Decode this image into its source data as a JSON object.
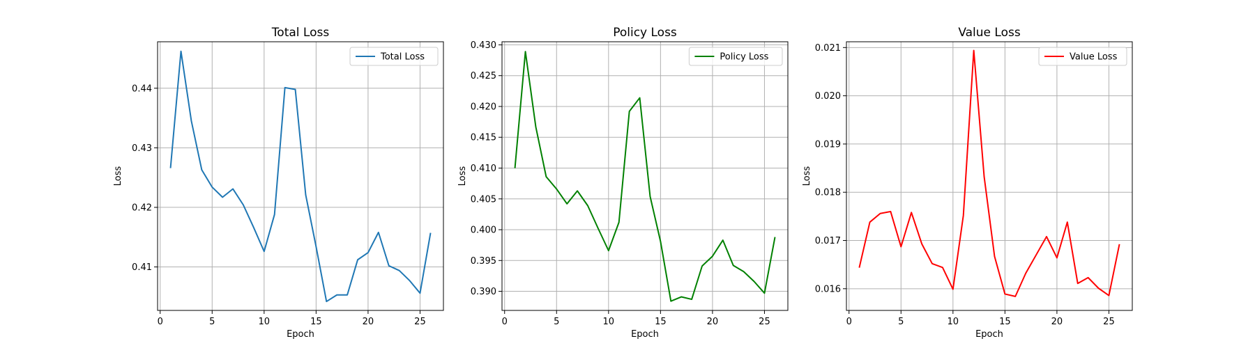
{
  "chart_data": [
    {
      "type": "line",
      "title": "Total Loss",
      "xlabel": "Epoch",
      "ylabel": "Loss",
      "xlim": [
        -0.25,
        27.25
      ],
      "ylim": [
        0.4027,
        0.4478
      ],
      "xticks": [
        0,
        5,
        10,
        15,
        20,
        25
      ],
      "yticks": [
        0.41,
        0.42,
        0.43,
        0.44
      ],
      "ytick_labels": [
        "0.41",
        "0.42",
        "0.43",
        "0.44"
      ],
      "grid": true,
      "legend": "top-right",
      "series": [
        {
          "name": "Total Loss",
          "color": "#1f77b4",
          "x": [
            1,
            2,
            3,
            4,
            5,
            6,
            7,
            8,
            9,
            10,
            11,
            12,
            13,
            14,
            15,
            16,
            17,
            18,
            19,
            20,
            21,
            22,
            23,
            24,
            25,
            26
          ],
          "y": [
            0.4267,
            0.4462,
            0.4345,
            0.4263,
            0.4234,
            0.4217,
            0.4231,
            0.4204,
            0.4166,
            0.4126,
            0.4188,
            0.4401,
            0.4398,
            0.4221,
            0.4134,
            0.4042,
            0.4053,
            0.4053,
            0.4112,
            0.4124,
            0.4158,
            0.4102,
            0.4094,
            0.4077,
            0.4056,
            0.4156
          ]
        }
      ]
    },
    {
      "type": "line",
      "title": "Policy Loss",
      "xlabel": "Epoch",
      "ylabel": "Loss",
      "xlim": [
        -0.25,
        27.25
      ],
      "ylim": [
        0.3869,
        0.4305
      ],
      "xticks": [
        0,
        5,
        10,
        15,
        20,
        25
      ],
      "yticks": [
        0.39,
        0.395,
        0.4,
        0.405,
        0.41,
        0.415,
        0.42,
        0.425,
        0.43
      ],
      "ytick_labels": [
        "0.390",
        "0.395",
        "0.400",
        "0.405",
        "0.410",
        "0.415",
        "0.420",
        "0.425",
        "0.430"
      ],
      "grid": true,
      "legend": "top-right",
      "series": [
        {
          "name": "Policy Loss",
          "color": "#008000",
          "x": [
            1,
            2,
            3,
            4,
            5,
            6,
            7,
            8,
            9,
            10,
            11,
            12,
            13,
            14,
            15,
            16,
            17,
            18,
            19,
            20,
            21,
            22,
            23,
            24,
            25,
            26
          ],
          "y": [
            0.4101,
            0.4289,
            0.4167,
            0.4086,
            0.4066,
            0.4042,
            0.4063,
            0.4039,
            0.4002,
            0.3966,
            0.4012,
            0.4192,
            0.4214,
            0.4054,
            0.3981,
            0.3884,
            0.3891,
            0.3887,
            0.3941,
            0.3957,
            0.3983,
            0.3942,
            0.3932,
            0.3916,
            0.3897,
            0.3987
          ]
        }
      ]
    },
    {
      "type": "line",
      "title": "Value Loss",
      "xlabel": "Epoch",
      "ylabel": "Loss",
      "xlim": [
        -0.25,
        27.25
      ],
      "ylim": [
        0.01555,
        0.02112
      ],
      "xticks": [
        0,
        5,
        10,
        15,
        20,
        25
      ],
      "yticks": [
        0.016,
        0.017,
        0.018,
        0.019,
        0.02,
        0.021
      ],
      "ytick_labels": [
        "0.016",
        "0.017",
        "0.018",
        "0.019",
        "0.020",
        "0.021"
      ],
      "grid": true,
      "legend": "top-right",
      "series": [
        {
          "name": "Value Loss",
          "color": "#ff0000",
          "x": [
            1,
            2,
            3,
            4,
            5,
            6,
            7,
            8,
            9,
            10,
            11,
            12,
            13,
            14,
            15,
            16,
            17,
            18,
            19,
            20,
            21,
            22,
            23,
            24,
            25,
            26
          ],
          "y": [
            0.01645,
            0.01738,
            0.01756,
            0.0176,
            0.01687,
            0.01758,
            0.01693,
            0.01652,
            0.01644,
            0.01599,
            0.01752,
            0.02094,
            0.01832,
            0.01667,
            0.01589,
            0.01584,
            0.01632,
            0.0167,
            0.01708,
            0.01664,
            0.01738,
            0.01611,
            0.01623,
            0.01601,
            0.01586,
            0.01691
          ]
        }
      ]
    }
  ]
}
